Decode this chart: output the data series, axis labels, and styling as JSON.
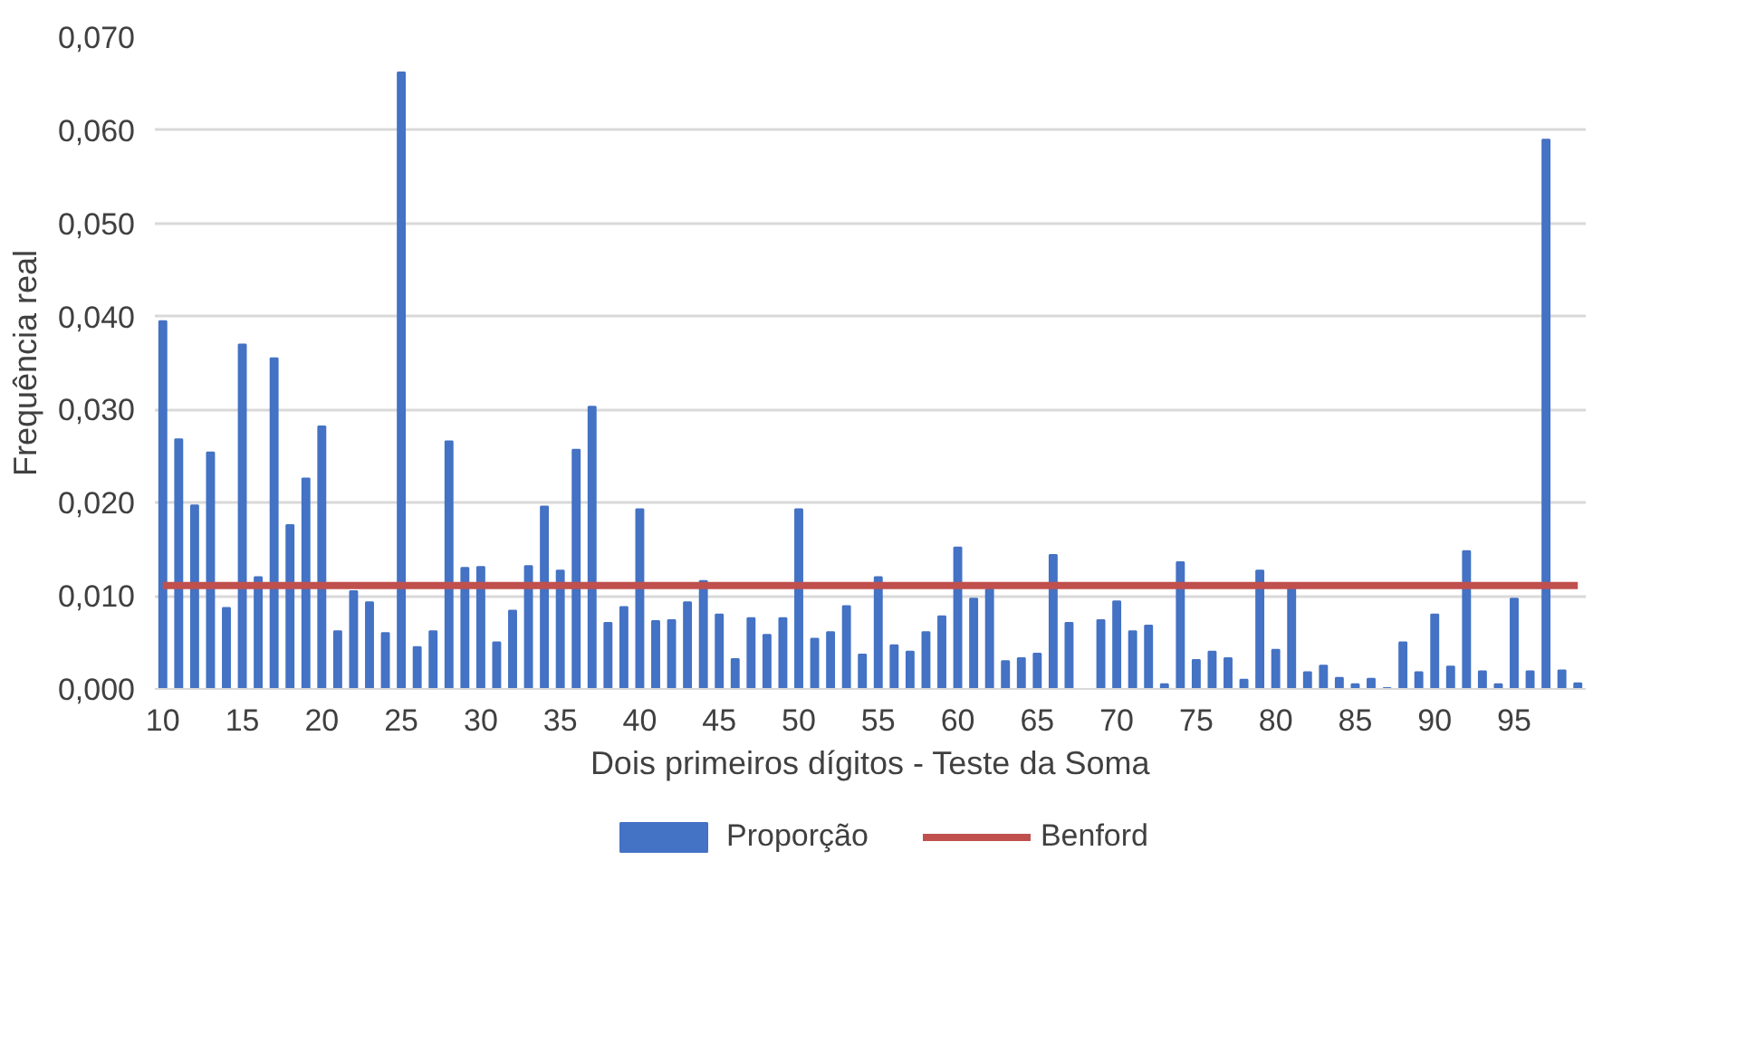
{
  "chart_data": {
    "type": "bar",
    "xlabel": "Dois primeiros dígitos - Teste da Soma",
    "ylabel": "Frequência real",
    "x": [
      10,
      11,
      12,
      13,
      14,
      15,
      16,
      17,
      18,
      19,
      20,
      21,
      22,
      23,
      24,
      25,
      26,
      27,
      28,
      29,
      30,
      31,
      32,
      33,
      34,
      35,
      36,
      37,
      38,
      39,
      40,
      41,
      42,
      43,
      44,
      45,
      46,
      47,
      48,
      49,
      50,
      51,
      52,
      53,
      54,
      55,
      56,
      57,
      58,
      59,
      60,
      61,
      62,
      63,
      64,
      65,
      66,
      67,
      68,
      69,
      70,
      71,
      72,
      73,
      74,
      75,
      76,
      77,
      78,
      79,
      80,
      81,
      82,
      83,
      84,
      85,
      86,
      87,
      88,
      89,
      90,
      91,
      92,
      93,
      94,
      95,
      96,
      97,
      98,
      99
    ],
    "series": [
      {
        "name": "Proporção",
        "color": "#4472c4",
        "values": [
          0.0395,
          0.0268,
          0.0197,
          0.0254,
          0.0087,
          0.037,
          0.012,
          0.0355,
          0.0176,
          0.0226,
          0.0282,
          0.0062,
          0.0105,
          0.0093,
          0.006,
          0.0662,
          0.0045,
          0.0062,
          0.0266,
          0.013,
          0.0131,
          0.005,
          0.0084,
          0.0132,
          0.0196,
          0.0127,
          0.0257,
          0.0303,
          0.0071,
          0.0088,
          0.0193,
          0.0073,
          0.0074,
          0.0093,
          0.0116,
          0.008,
          0.0032,
          0.0076,
          0.0058,
          0.0076,
          0.0193,
          0.0054,
          0.0061,
          0.0089,
          0.0037,
          0.012,
          0.0047,
          0.004,
          0.0061,
          0.0078,
          0.0152,
          0.0097,
          0.0107,
          0.003,
          0.0033,
          0.0038,
          0.0144,
          0.0071,
          0.0,
          0.0074,
          0.0094,
          0.0062,
          0.0068,
          0.0005,
          0.0136,
          0.0031,
          0.004,
          0.0033,
          0.001,
          0.0127,
          0.0042,
          0.0108,
          0.0018,
          0.0025,
          0.0012,
          0.0005,
          0.0011,
          0.0001,
          0.005,
          0.0018,
          0.008,
          0.0024,
          0.0148,
          0.0019,
          0.0005,
          0.0097,
          0.0019,
          0.059,
          0.002,
          0.0006
        ]
      },
      {
        "name": "Benford",
        "type": "line",
        "color": "#c0504d",
        "x": [
          10,
          99
        ],
        "values": [
          0.0111,
          0.0111
        ]
      }
    ],
    "xlim": [
      9.5,
      99.5
    ],
    "xticks": [
      10,
      15,
      20,
      25,
      30,
      35,
      40,
      45,
      50,
      55,
      60,
      65,
      70,
      75,
      80,
      85,
      90,
      95
    ],
    "ylim": [
      0,
      0.07
    ],
    "yticks": [
      {
        "value": 0,
        "label": "0,000"
      },
      {
        "value": 0.01,
        "label": "0,010"
      },
      {
        "value": 0.02,
        "label": "0,020"
      },
      {
        "value": 0.03,
        "label": "0,030"
      },
      {
        "value": 0.04,
        "label": "0,040"
      },
      {
        "value": 0.05,
        "label": "0,050"
      },
      {
        "value": 0.06,
        "label": "0,060"
      },
      {
        "value": 0.07,
        "label": "0,070"
      }
    ],
    "grid": "y",
    "legend": "bottom"
  }
}
